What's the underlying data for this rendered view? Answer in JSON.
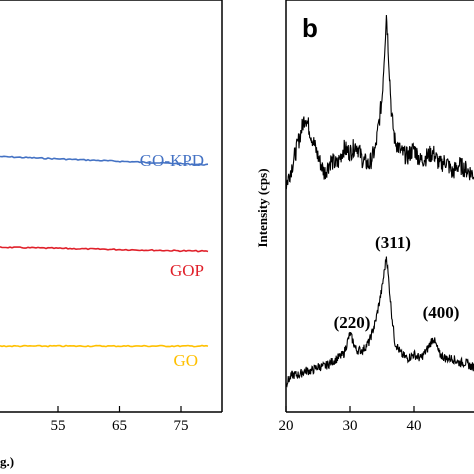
{
  "chart_data": [
    {
      "panel": "a",
      "type": "line",
      "xlabel_fragment": "g.)",
      "xlim": [
        5,
        80
      ],
      "x_ticks": [
        "55",
        "65",
        "75"
      ],
      "x_tick_values": [
        55,
        65,
        75
      ],
      "series": [
        {
          "name": "GO-KPD",
          "color": "#4472c4",
          "x": [
            5,
            80
          ],
          "y": [
            0.62,
            0.6
          ]
        },
        {
          "name": "GOP",
          "color": "#e0202a",
          "x": [
            5,
            80
          ],
          "y": [
            0.4,
            0.39
          ]
        },
        {
          "name": "GO",
          "color": "#ffc000",
          "x": [
            5,
            80
          ],
          "y": [
            0.16,
            0.16
          ]
        }
      ]
    },
    {
      "panel": "b",
      "panel_label": "b",
      "type": "line",
      "ylabel": "Intensity (cps)",
      "xlim": [
        20,
        50
      ],
      "x_ticks": [
        "20",
        "30",
        "40"
      ],
      "x_tick_values": [
        20,
        30,
        40
      ],
      "peak_labels": [
        "(311)",
        "(220)",
        "(400)"
      ],
      "series": [
        {
          "name": "",
          "color": "#000000",
          "x": [
            20,
            21,
            22,
            23,
            24,
            25,
            26,
            27,
            28,
            29,
            30,
            31,
            32,
            33,
            34,
            35,
            35.7,
            36.5,
            37,
            38,
            39,
            40,
            41,
            42,
            43,
            44,
            45,
            46,
            47,
            48,
            49,
            50
          ],
          "y": [
            0.55,
            0.6,
            0.66,
            0.72,
            0.67,
            0.62,
            0.58,
            0.61,
            0.6,
            0.64,
            0.63,
            0.65,
            0.61,
            0.6,
            0.64,
            0.76,
            0.97,
            0.72,
            0.66,
            0.63,
            0.62,
            0.64,
            0.61,
            0.62,
            0.63,
            0.6,
            0.61,
            0.58,
            0.6,
            0.59,
            0.58,
            0.57
          ]
        },
        {
          "name": "",
          "color": "#000000",
          "x": [
            20,
            21,
            22,
            23,
            24,
            25,
            26,
            27,
            28,
            29,
            30,
            31,
            32,
            33,
            34,
            35,
            35.7,
            36.5,
            37,
            38,
            39,
            40,
            41,
            42,
            43,
            44,
            45,
            46,
            47,
            48,
            49,
            50
          ],
          "y": [
            0.07,
            0.09,
            0.09,
            0.1,
            0.1,
            0.11,
            0.11,
            0.12,
            0.13,
            0.14,
            0.19,
            0.15,
            0.15,
            0.17,
            0.22,
            0.3,
            0.38,
            0.24,
            0.17,
            0.14,
            0.13,
            0.14,
            0.13,
            0.15,
            0.18,
            0.14,
            0.13,
            0.13,
            0.12,
            0.12,
            0.11,
            0.11
          ]
        }
      ]
    }
  ]
}
